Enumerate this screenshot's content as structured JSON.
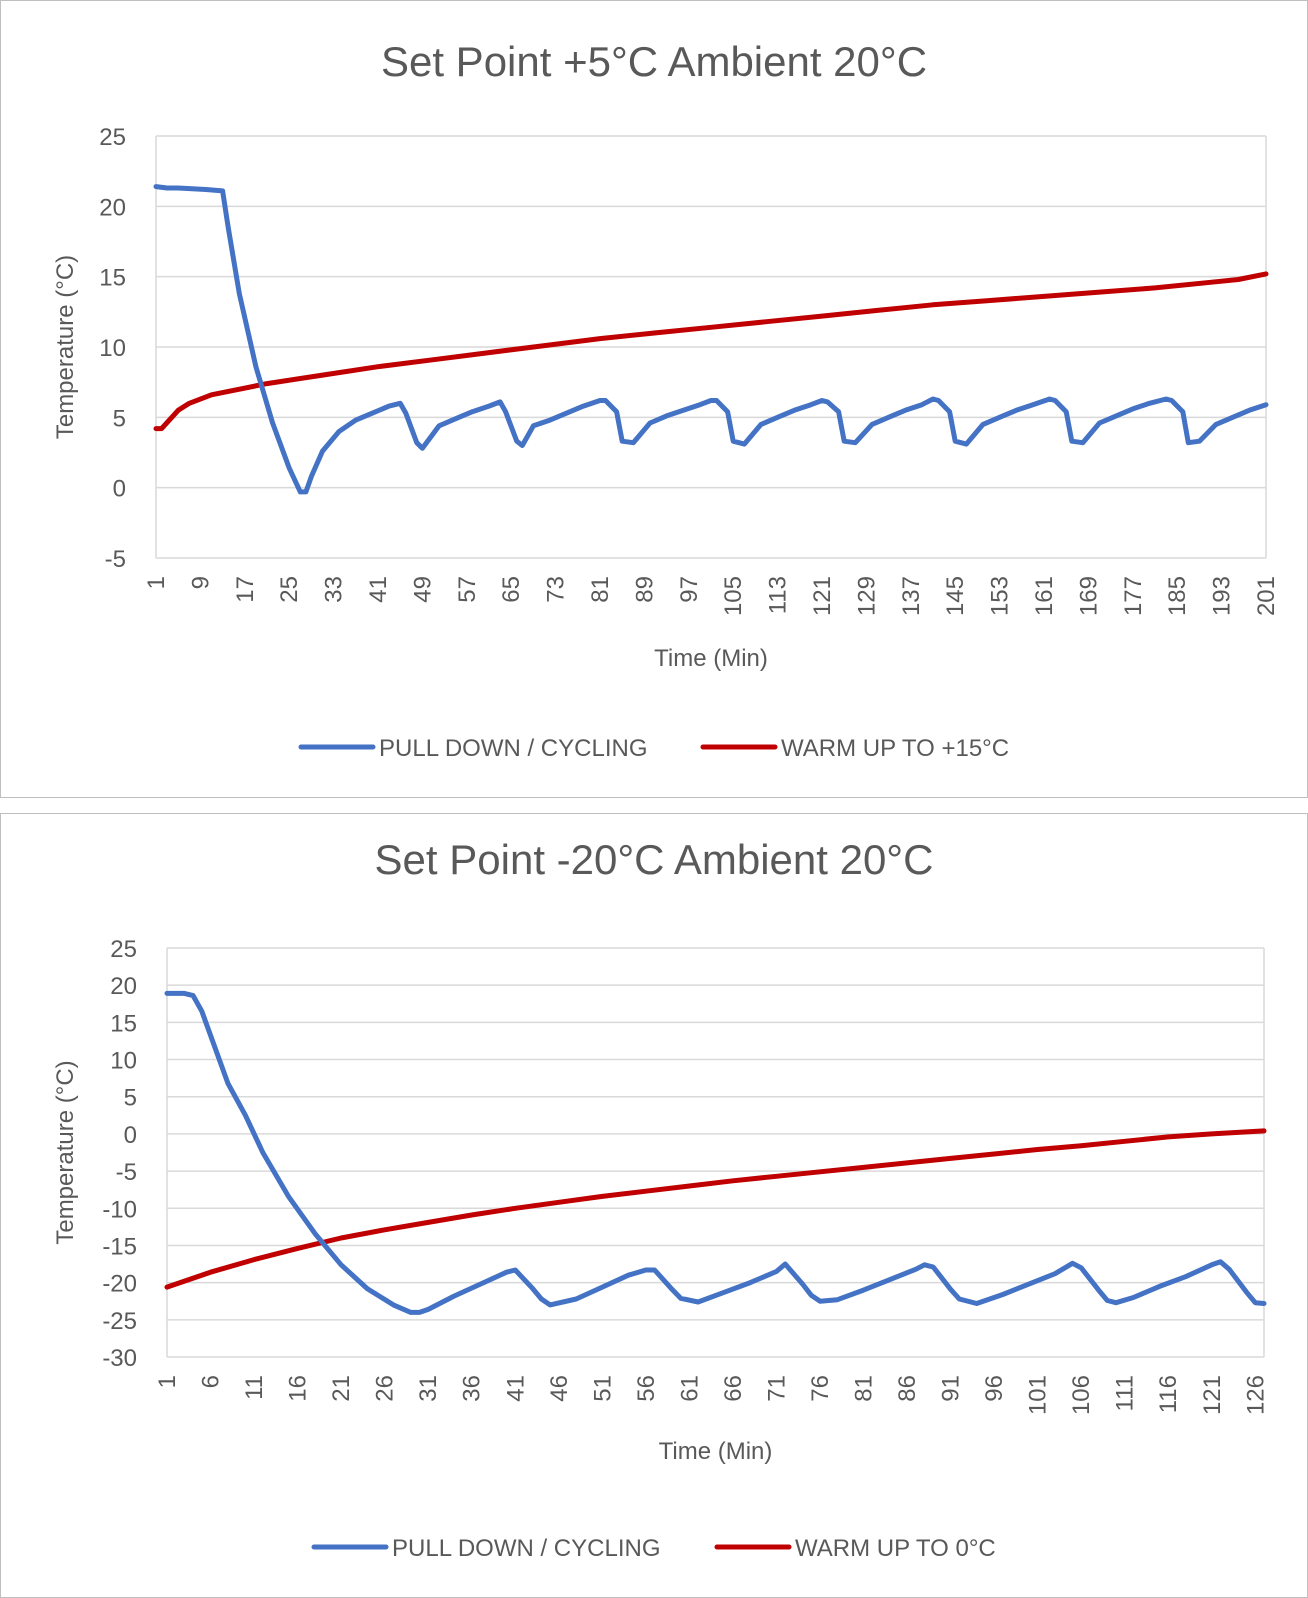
{
  "chart_data": [
    {
      "type": "line",
      "title": "Set Point +5°C Ambient 20°C",
      "xlabel": "Time (Min)",
      "ylabel": "Temperature (°C)",
      "ylim": [
        -5,
        25
      ],
      "yticks": [
        "25",
        "20",
        "15",
        "10",
        "5",
        "0",
        "-5"
      ],
      "xlim": [
        1,
        201
      ],
      "xticks": [
        "1",
        "9",
        "17",
        "25",
        "33",
        "41",
        "49",
        "57",
        "65",
        "73",
        "81",
        "89",
        "97",
        "105",
        "113",
        "121",
        "129",
        "137",
        "145",
        "153",
        "161",
        "169",
        "177",
        "185",
        "193",
        "201"
      ],
      "grid": "horizontal",
      "legend": "bottom",
      "series": [
        {
          "name": "PULL DOWN / CYCLING",
          "color": "#4472C4",
          "x": [
            1,
            3,
            5,
            10,
            13,
            14,
            16,
            19,
            22,
            25,
            27,
            28,
            29,
            31,
            34,
            37,
            40,
            43,
            45,
            46,
            48,
            49,
            52,
            55,
            58,
            61,
            63,
            64,
            66,
            67,
            69,
            72,
            75,
            78,
            81,
            82,
            84,
            85,
            87,
            90,
            93,
            96,
            99,
            101,
            102,
            104,
            105,
            107,
            110,
            113,
            116,
            119,
            121,
            122,
            124,
            125,
            127,
            130,
            133,
            136,
            139,
            141,
            142,
            144,
            145,
            147,
            150,
            153,
            156,
            159,
            162,
            163,
            165,
            166,
            168,
            171,
            174,
            177,
            180,
            183,
            184,
            186,
            187,
            189,
            192,
            195,
            198,
            201
          ],
          "values": [
            21.4,
            21.3,
            21.3,
            21.2,
            21.1,
            18.5,
            13.8,
            8.6,
            4.6,
            1.4,
            -0.3,
            -0.3,
            0.8,
            2.6,
            4.0,
            4.8,
            5.3,
            5.8,
            6.0,
            5.3,
            3.2,
            2.8,
            4.4,
            4.9,
            5.4,
            5.8,
            6.1,
            5.4,
            3.3,
            3.0,
            4.4,
            4.8,
            5.3,
            5.8,
            6.2,
            6.2,
            5.4,
            3.3,
            3.2,
            4.6,
            5.1,
            5.5,
            5.9,
            6.2,
            6.2,
            5.4,
            3.3,
            3.1,
            4.5,
            5.0,
            5.5,
            5.9,
            6.2,
            6.1,
            5.4,
            3.3,
            3.2,
            4.5,
            5.0,
            5.5,
            5.9,
            6.3,
            6.2,
            5.4,
            3.3,
            3.1,
            4.5,
            5.0,
            5.5,
            5.9,
            6.3,
            6.2,
            5.4,
            3.3,
            3.2,
            4.6,
            5.1,
            5.6,
            6.0,
            6.3,
            6.2,
            5.4,
            3.2,
            3.3,
            4.5,
            5.0,
            5.5,
            5.9
          ]
        },
        {
          "name": "WARM UP TO +15°C",
          "color": "#C00000",
          "x": [
            1,
            2,
            5,
            7,
            11,
            21,
            31,
            41,
            51,
            61,
            71,
            81,
            91,
            101,
            111,
            121,
            131,
            141,
            151,
            161,
            171,
            181,
            191,
            196,
            201
          ],
          "values": [
            4.2,
            4.2,
            5.5,
            6.0,
            6.6,
            7.4,
            8.0,
            8.6,
            9.1,
            9.6,
            10.1,
            10.6,
            11.0,
            11.4,
            11.8,
            12.2,
            12.6,
            13.0,
            13.3,
            13.6,
            13.9,
            14.2,
            14.6,
            14.8,
            15.2
          ]
        }
      ]
    },
    {
      "type": "line",
      "title": "Set Point -20°C Ambient 20°C",
      "xlabel": "Time (Min)",
      "ylabel": "Temperature (°C)",
      "ylim": [
        -30,
        25
      ],
      "yticks": [
        "25",
        "20",
        "15",
        "10",
        "5",
        "0",
        "-5",
        "-10",
        "-15",
        "-20",
        "-25",
        "-30"
      ],
      "xlim": [
        1,
        127
      ],
      "xticks": [
        "1",
        "6",
        "11",
        "16",
        "21",
        "26",
        "31",
        "36",
        "41",
        "46",
        "51",
        "56",
        "61",
        "66",
        "71",
        "76",
        "81",
        "86",
        "91",
        "96",
        "101",
        "106",
        "111",
        "116",
        "121",
        "126"
      ],
      "grid": "horizontal",
      "legend": "bottom",
      "series": [
        {
          "name": "PULL DOWN / CYCLING",
          "color": "#4472C4",
          "x": [
            1,
            3,
            4,
            5,
            8,
            10,
            12,
            15,
            18,
            21,
            24,
            27,
            29,
            30,
            31,
            34,
            37,
            40,
            41,
            43,
            44,
            45,
            48,
            51,
            54,
            56,
            57,
            59,
            60,
            62,
            65,
            68,
            71,
            72,
            74,
            75,
            76,
            78,
            81,
            84,
            87,
            88,
            89,
            91,
            92,
            94,
            97,
            100,
            103,
            105,
            106,
            108,
            109,
            110,
            112,
            115,
            118,
            121,
            122,
            123,
            125,
            126,
            127
          ],
          "values": [
            18.9,
            18.9,
            18.6,
            16.5,
            6.8,
            2.5,
            -2.5,
            -8.5,
            -13.4,
            -17.6,
            -20.8,
            -23.0,
            -24.0,
            -24.0,
            -23.6,
            -21.8,
            -20.2,
            -18.6,
            -18.3,
            -20.8,
            -22.2,
            -23.0,
            -22.2,
            -20.6,
            -19.0,
            -18.3,
            -18.3,
            -20.9,
            -22.1,
            -22.6,
            -21.3,
            -20.0,
            -18.5,
            -17.5,
            -20.2,
            -21.7,
            -22.5,
            -22.3,
            -21.0,
            -19.6,
            -18.2,
            -17.6,
            -17.9,
            -20.9,
            -22.2,
            -22.8,
            -21.6,
            -20.2,
            -18.8,
            -17.4,
            -18.0,
            -21.0,
            -22.4,
            -22.7,
            -22.0,
            -20.5,
            -19.2,
            -17.6,
            -17.2,
            -18.2,
            -21.3,
            -22.7,
            -22.8
          ]
        },
        {
          "name": "WARM UP TO 0°C",
          "color": "#C00000",
          "x": [
            1,
            6,
            11,
            16,
            21,
            26,
            31,
            36,
            41,
            46,
            51,
            56,
            61,
            66,
            71,
            76,
            81,
            86,
            91,
            96,
            101,
            106,
            111,
            116,
            121,
            127
          ],
          "values": [
            -20.6,
            -18.6,
            -16.9,
            -15.4,
            -14.0,
            -12.9,
            -11.9,
            -10.9,
            -10.0,
            -9.2,
            -8.4,
            -7.7,
            -7.0,
            -6.3,
            -5.7,
            -5.1,
            -4.5,
            -3.9,
            -3.3,
            -2.7,
            -2.1,
            -1.6,
            -1.0,
            -0.4,
            0.0,
            0.4
          ]
        }
      ]
    }
  ]
}
